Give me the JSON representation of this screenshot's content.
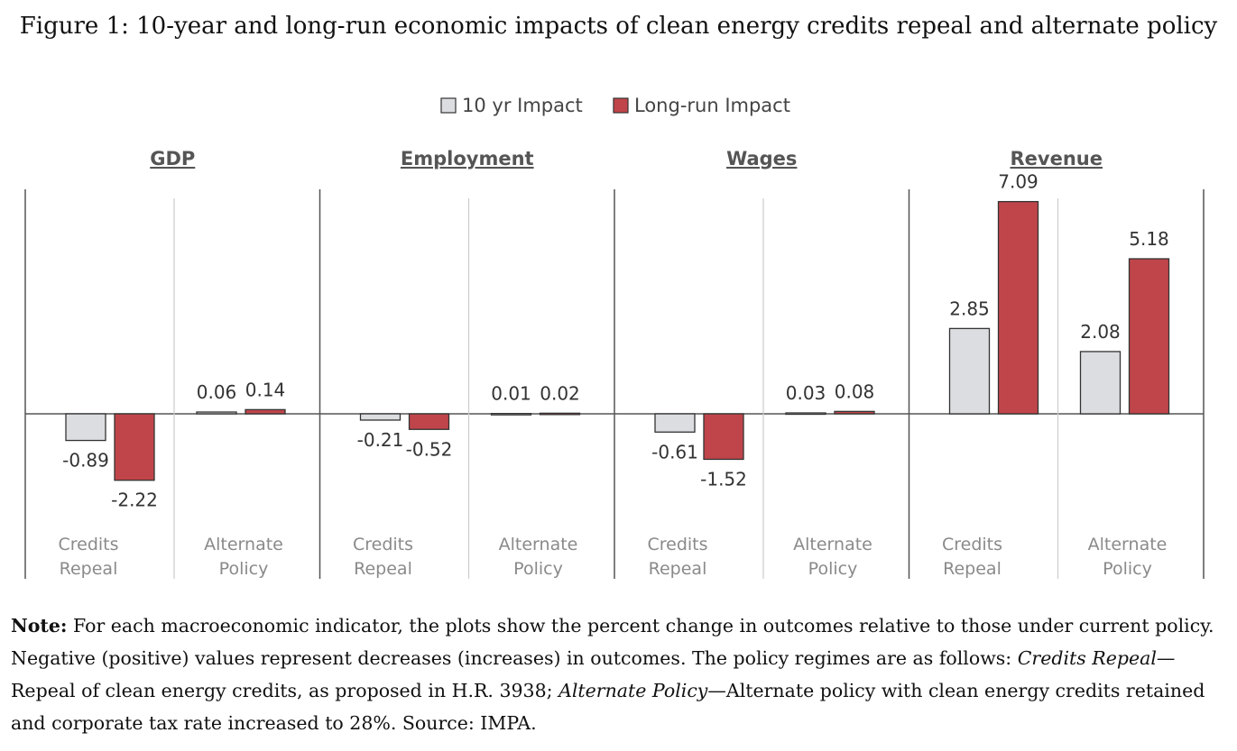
{
  "figure_title": "Figure 1: 10-year and long-run economic impacts of clean energy credits repeal and alternate policy",
  "colors": {
    "ten_yr": "#dcdde1",
    "long_run": "#c0454a",
    "axis": "#555555",
    "divider": "#cccccc",
    "label_gray": "#8a8a8a"
  },
  "chart_data": {
    "type": "bar",
    "legend": [
      "10 yr Impact",
      "Long-run Impact"
    ],
    "legend_position": "top-center",
    "panels": [
      {
        "title": "GDP",
        "categories": [
          "Credits Repeal",
          "Alternate Policy"
        ],
        "category_lines": [
          [
            "Credits",
            "Repeal"
          ],
          [
            "Alternate",
            "Policy"
          ]
        ],
        "series": [
          {
            "name": "10 yr Impact",
            "values": [
              -0.89,
              0.06
            ],
            "labels": [
              "-0.89",
              "0.06"
            ]
          },
          {
            "name": "Long-run Impact",
            "values": [
              -2.22,
              0.14
            ],
            "labels": [
              "-2.22",
              "0.14"
            ]
          }
        ]
      },
      {
        "title": "Employment",
        "categories": [
          "Credits Repeal",
          "Alternate Policy"
        ],
        "category_lines": [
          [
            "Credits",
            "Repeal"
          ],
          [
            "Alternate",
            "Policy"
          ]
        ],
        "series": [
          {
            "name": "10 yr Impact",
            "values": [
              -0.21,
              0.01
            ],
            "labels": [
              "-0.21",
              "0.01"
            ]
          },
          {
            "name": "Long-run Impact",
            "values": [
              -0.52,
              0.02
            ],
            "labels": [
              "-0.52",
              "0.02"
            ]
          }
        ]
      },
      {
        "title": "Wages",
        "categories": [
          "Credits Repeal",
          "Alternate Policy"
        ],
        "category_lines": [
          [
            "Credits",
            "Repeal"
          ],
          [
            "Alternate",
            "Policy"
          ]
        ],
        "series": [
          {
            "name": "10 yr Impact",
            "values": [
              -0.61,
              0.03
            ],
            "labels": [
              "-0.61",
              "0.03"
            ]
          },
          {
            "name": "Long-run Impact",
            "values": [
              -1.52,
              0.08
            ],
            "labels": [
              "-1.52",
              "0.08"
            ]
          }
        ]
      },
      {
        "title": "Revenue",
        "categories": [
          "Credits Repeal",
          "Alternate Policy"
        ],
        "category_lines": [
          [
            "Credits",
            "Repeal"
          ],
          [
            "Alternate",
            "Policy"
          ]
        ],
        "series": [
          {
            "name": "10 yr Impact",
            "values": [
              2.85,
              2.08
            ],
            "labels": [
              "2.85",
              "2.08"
            ]
          },
          {
            "name": "Long-run Impact",
            "values": [
              7.09,
              5.18
            ],
            "labels": [
              "7.09",
              "5.18"
            ]
          }
        ]
      }
    ],
    "ylim": [
      -3.5,
      7.5
    ],
    "grid": false
  },
  "note": {
    "label": "Note:",
    "t1": " For each macroeconomic indicator, the plots show the percent change in outcomes relative to those under current policy. Negative (positive) values represent decreases (increases) in outcomes. The policy regimes are as follows: ",
    "r1": "Credits Repeal",
    "t2": "—Repeal of clean energy credits, as proposed in H.R. 3938; ",
    "r2": "Alternate Policy",
    "t3": "—Alternate policy with clean energy credits retained and corporate tax rate increased to 28%. Source: IMPA."
  }
}
